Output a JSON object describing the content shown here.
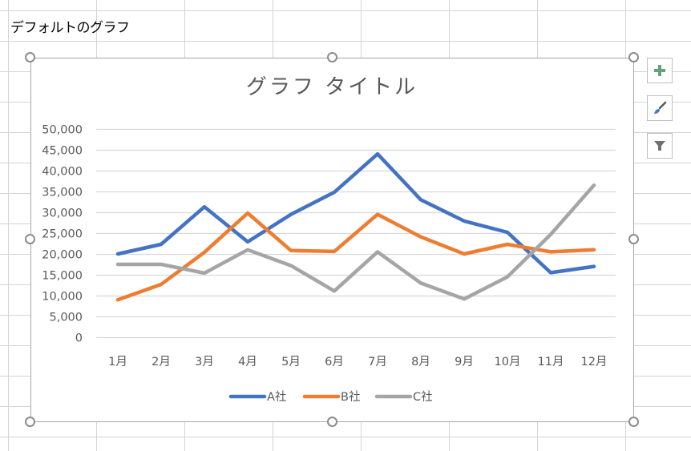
{
  "sheet": {
    "cell_a2_text": "デフォルトのグラフ"
  },
  "side_buttons": [
    {
      "name": "chart-elements-button",
      "icon": "plus-icon"
    },
    {
      "name": "chart-styles-button",
      "icon": "paintbrush-icon"
    },
    {
      "name": "chart-filters-button",
      "icon": "filter-icon"
    }
  ],
  "colors": {
    "series_a": "#4472C4",
    "series_b": "#ED7D31",
    "series_c": "#A5A5A5",
    "gridline": "#d9d9d9",
    "axis_text": "#595959",
    "title_text": "#595959",
    "plus_green": "#5fa37a"
  },
  "chart_data": {
    "type": "line",
    "title": "グラフ タイトル",
    "xlabel": "",
    "ylabel": "",
    "categories": [
      "1月",
      "2月",
      "3月",
      "4月",
      "5月",
      "6月",
      "7月",
      "8月",
      "9月",
      "10月",
      "11月",
      "12月"
    ],
    "series": [
      {
        "name": "A社",
        "color": "#4472C4",
        "values": [
          20000,
          22300,
          31300,
          22900,
          29500,
          34800,
          44000,
          33000,
          27900,
          25200,
          15500,
          17000
        ]
      },
      {
        "name": "B社",
        "color": "#ED7D31",
        "values": [
          9000,
          12700,
          20400,
          29800,
          20800,
          20600,
          29500,
          24100,
          20000,
          22300,
          20500,
          21000
        ]
      },
      {
        "name": "C社",
        "color": "#A5A5A5",
        "values": [
          17500,
          17500,
          15400,
          21000,
          17200,
          11100,
          20500,
          13000,
          9200,
          14500,
          24700,
          36500
        ]
      }
    ],
    "ylim": [
      0,
      50000
    ],
    "yticks": [
      0,
      5000,
      10000,
      15000,
      20000,
      25000,
      30000,
      35000,
      40000,
      45000,
      50000
    ],
    "ytick_labels": [
      "0",
      "5,000",
      "10,000",
      "15,000",
      "20,000",
      "25,000",
      "30,000",
      "35,000",
      "40,000",
      "45,000",
      "50,000"
    ],
    "grid": true,
    "legend_position": "bottom"
  }
}
